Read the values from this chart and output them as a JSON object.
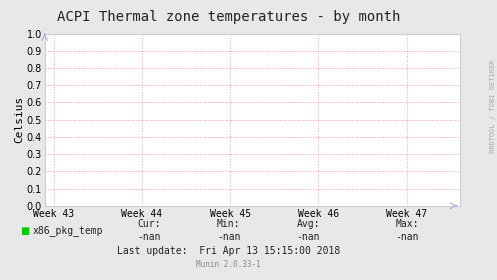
{
  "title": "ACPI Thermal zone temperatures - by month",
  "ylabel": "Celsius",
  "background_color": "#e8e8e8",
  "plot_bg_color": "#ffffff",
  "grid_color": "#ff9999",
  "x_ticks": [
    0,
    1,
    2,
    3,
    4
  ],
  "x_tick_labels": [
    "Week 43",
    "Week 44",
    "Week 45",
    "Week 46",
    "Week 47"
  ],
  "ylim": [
    0.0,
    1.0
  ],
  "y_ticks": [
    0.0,
    0.1,
    0.2,
    0.3,
    0.4,
    0.5,
    0.6,
    0.7,
    0.8,
    0.9,
    1.0
  ],
  "legend_label": "x86_pkg_temp",
  "legend_color": "#00cc00",
  "last_update": "Last update:  Fri Apr 13 15:15:00 2018",
  "munin_version": "Munin 2.0.33-1",
  "side_text": "RRDTOOL / TOBI OETIKER",
  "title_fontsize": 10,
  "axis_label_fontsize": 8,
  "tick_fontsize": 7,
  "footer_fontsize": 7,
  "arrow_color": "#aaaadd",
  "spine_color": "#ccccdd",
  "cur_label": "Cur:",
  "min_label": "Min:",
  "avg_label": "Avg:",
  "max_label": "Max:",
  "cur_val": "-nan",
  "min_val": "-nan",
  "avg_val": "-nan",
  "max_val": "-nan"
}
